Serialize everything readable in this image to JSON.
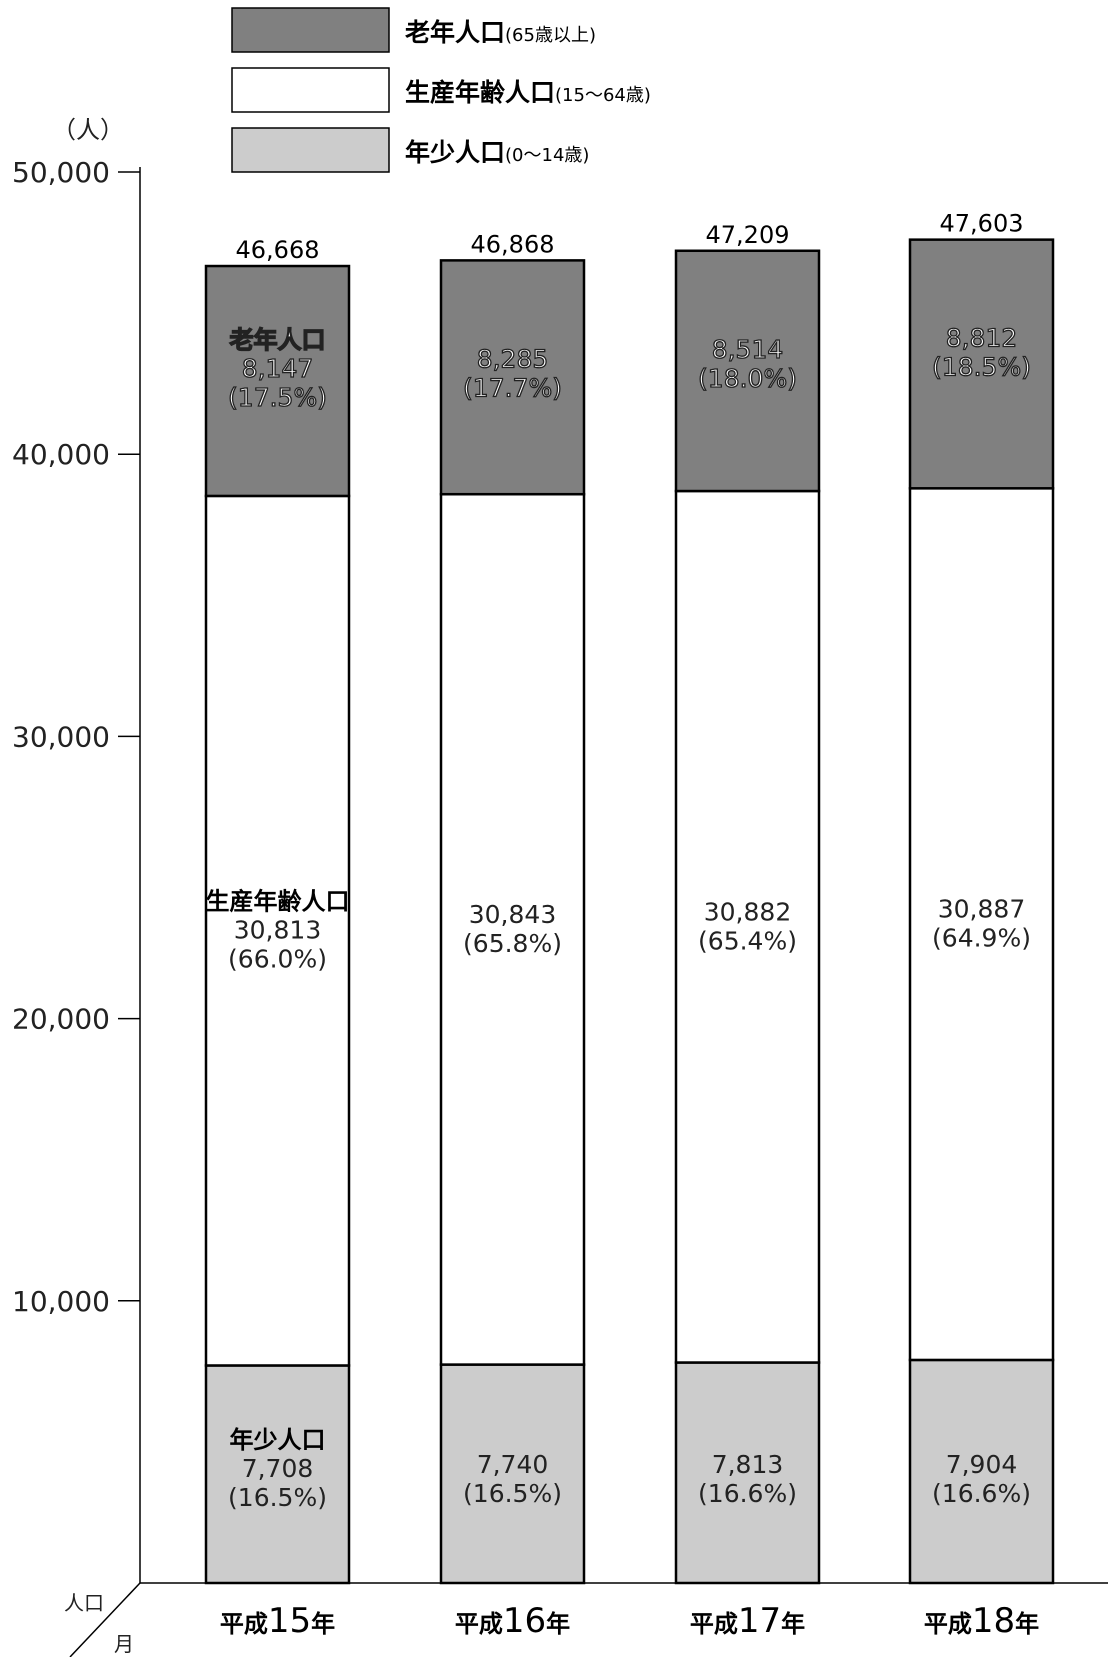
{
  "chart_data": {
    "type": "bar",
    "stacked": true,
    "title": "",
    "xlabel": "",
    "ylabel": "（人）",
    "ylim": [
      0,
      50000
    ],
    "yticks": [
      10000,
      20000,
      30000,
      40000,
      50000
    ],
    "ytick_labels": [
      "10,000",
      "20,000",
      "30,000",
      "40,000",
      "50,000"
    ],
    "corner_labels": {
      "top": "人口",
      "bottom": "月"
    },
    "categories": [
      {
        "prefix": "平成",
        "num": "15",
        "suffix": "年"
      },
      {
        "prefix": "平成",
        "num": "16",
        "suffix": "年"
      },
      {
        "prefix": "平成",
        "num": "17",
        "suffix": "年"
      },
      {
        "prefix": "平成",
        "num": "18",
        "suffix": "年"
      }
    ],
    "totals": [
      46668,
      46868,
      47209,
      47603
    ],
    "total_labels": [
      "46,668",
      "46,868",
      "47,209",
      "47,603"
    ],
    "legend": [
      {
        "label": "老年人口",
        "sub": "(65歳以上)",
        "color": "#808080"
      },
      {
        "label": "生産年齢人口",
        "sub": "(15～64歳)",
        "color": "#ffffff"
      },
      {
        "label": "年少人口",
        "sub": "(0～14歳)",
        "color": "#cccccc"
      }
    ],
    "series": [
      {
        "name": "年少人口",
        "color": "#cccccc",
        "values": [
          7708,
          7740,
          7813,
          7904
        ],
        "value_labels": [
          "7,708",
          "7,740",
          "7,813",
          "7,904"
        ],
        "pct_labels": [
          "(16.5%)",
          "(16.5%)",
          "(16.6%)",
          "(16.6%)"
        ]
      },
      {
        "name": "生産年齢人口",
        "color": "#ffffff",
        "values": [
          30813,
          30843,
          30882,
          30887
        ],
        "value_labels": [
          "30,813",
          "30,843",
          "30,882",
          "30,887"
        ],
        "pct_labels": [
          "(66.0%)",
          "(65.8%)",
          "(65.4%)",
          "(64.9%)"
        ]
      },
      {
        "name": "老年人口",
        "color": "#808080",
        "values": [
          8147,
          8285,
          8514,
          8812
        ],
        "value_labels": [
          "8,147",
          "8,285",
          "8,514",
          "8,812"
        ],
        "pct_labels": [
          "(17.5%)",
          "(17.7%)",
          "(18.0%)",
          "(18.5%)"
        ]
      }
    ]
  }
}
